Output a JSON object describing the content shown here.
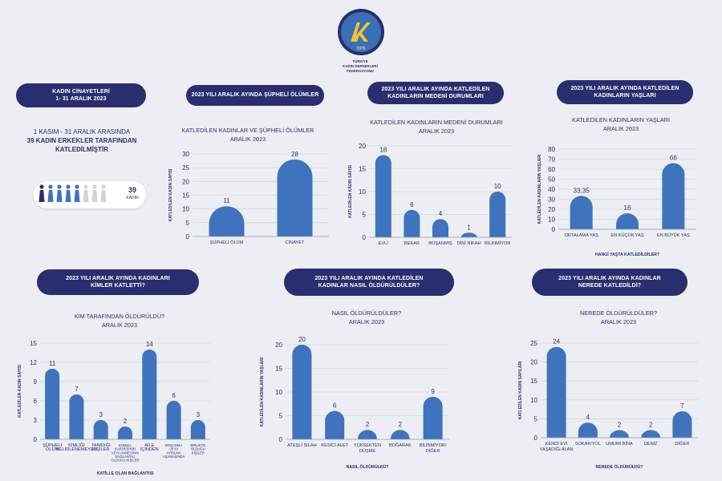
{
  "logo": {
    "text": "TÜRKİYE\nKADIN DERNEKLERİ\nFEDERASYONU",
    "emblem_year": "1976"
  },
  "summary": {
    "title": "KADIN CİNAYETLERİ\n1- 31 ARALIK 2023",
    "line1": "1 KASIM - 31 ARALIK ARASINDA",
    "line2": "39 KADIN ERKEKLER TARAFINDAN",
    "line3": "KATLEDİLMİŞTİR",
    "badge_number": "39",
    "badge_label": "KADIN",
    "colors": {
      "dark": "#2a2d6e",
      "blue": "#3f73bd",
      "grey": "#cfd3dc"
    }
  },
  "panels": {
    "suspicious": {
      "header": "2023 YILI ARALIK AYINDA ŞÜPHELİ ÖLÜMLER",
      "subtitle": "KATLEDİLEN KADINLAR VE ŞÜPHELİ ÖLÜMLER\nARALIK 2023"
    },
    "marital": {
      "header": "2023 YILI ARALIK AYINDA KATLEDİLEN\nKADINLARIN MEDENİ DURUMLARI",
      "subtitle": "KATLEDİLEN KADINLARIN MEDENİ DURUMLARI\nARALIK 2023"
    },
    "ages": {
      "header": "2023 YILI ARALIK AYINDA KATLEDİLEN\nKADINLARIN YAŞLARI",
      "subtitle": "KATLEDİLEN KADINLARIN YAŞLARI\nARALIK 2023"
    },
    "who": {
      "header": "2023 YILI ARALIK AYINDA KADINLARI\nKİMLER KATLETTİ?",
      "subtitle": "KİM TARAFINDAN ÖLDÜRÜLDÜ?\nARALIK 2023"
    },
    "how": {
      "header": "2023 YILI ARALIK AYINDA KATLEDİLEN\nKADINLAR NASIL ÖLDÜRÜLDÜLER?",
      "subtitle": "NASIL ÖLDÜRÜLDÜLER?\nARALIK 2023"
    },
    "where": {
      "header": "2023 YILI ARALIK AYINDA KADINLAR\nNEREDE KATLEDİLDİ?",
      "subtitle": "NEREDE ÖLDÜRÜLDÜLER?\nARALIK 2023"
    }
  },
  "chart_data": [
    {
      "id": "suspicious",
      "type": "bar",
      "categories": [
        "ŞÜPHELİ ÖLÜM",
        "CİNAYET"
      ],
      "values": [
        11,
        28
      ],
      "ylabel": "KATLEDİLEN KADIN SAYISI",
      "xlabel": "",
      "ylim": [
        0,
        30
      ],
      "yticks": [
        0,
        5,
        10,
        15,
        20,
        25,
        30
      ],
      "value_labels": [
        "11",
        "28"
      ],
      "color": "#3f73bd"
    },
    {
      "id": "marital",
      "type": "bar",
      "categories": [
        "EVLİ",
        "BEKAR",
        "BOŞANMIŞ",
        "DİNİ NİKAH",
        "BİLİNMİYOR"
      ],
      "values": [
        18,
        6,
        4,
        1,
        10
      ],
      "ylabel": "KATLEDİLEN KADIN SAYISI",
      "xlabel": "",
      "ylim": [
        0,
        20
      ],
      "yticks": [
        0,
        5,
        10,
        15,
        20
      ],
      "value_labels": [
        "18",
        "6",
        "4",
        "1",
        "10"
      ],
      "color": "#3f73bd"
    },
    {
      "id": "ages",
      "type": "bar",
      "categories": [
        "ORTALAMA YAŞ",
        "EN KÜÇÜK YAŞ",
        "EN BÜYÜK YAŞ"
      ],
      "values": [
        33.35,
        16,
        66
      ],
      "ylabel": "KATLEDİLEN KADINLARIN YAŞLARI",
      "xlabel": "HANGİ YAŞTA KATLEDİLDİLER?",
      "ylim": [
        0,
        80
      ],
      "yticks": [
        0,
        10,
        20,
        30,
        40,
        50,
        60,
        70,
        80
      ],
      "value_labels": [
        "33,35",
        "16",
        "66"
      ],
      "color": "#3f73bd"
    },
    {
      "id": "who",
      "type": "bar",
      "categories": [
        "ŞÜPHELİ\nÖLÜM",
        "KİMLİĞİ\nBELİRLENEMEYEN",
        "TANIDIĞI\nKİŞİLER",
        "KOMŞU,\nKARDEŞİNİN\nVEYA ANNESİNİN\nBAĞLANTILI\nOLDUĞU KİŞİLER",
        "AİLE\nİÇİNDEN",
        "BOŞANMA\nVEYA\nAYRILMA\nAŞAMASINDA",
        "BİRLİKTE\nOLDUĞU\nKİŞİLER"
      ],
      "values": [
        11,
        7,
        3,
        2,
        14,
        6,
        3
      ],
      "ylabel": "KATLEDİLEN KADIN SAYISI",
      "xlabel": "KATİLLE OLAN BAĞLANTISI",
      "ylim": [
        0,
        15
      ],
      "yticks": [
        0,
        3,
        6,
        9,
        12,
        15
      ],
      "value_labels": [
        "11",
        "7",
        "3",
        "2",
        "14",
        "6",
        "3"
      ],
      "color": "#3f73bd"
    },
    {
      "id": "how",
      "type": "bar",
      "categories": [
        "ATEŞLİ SİLAH",
        "KESİCİ ALET",
        "YÜKSEKTEN\nDÜŞME",
        "BOĞARAK",
        "BİLİNMİYOR/\nDİĞER"
      ],
      "values": [
        20,
        6,
        2,
        2,
        9
      ],
      "ylabel": "KATLEDİLEN KADINLARIN YAŞLARI",
      "xlabel": "NASIL ÖLDÜRÜLDÜ?",
      "ylim": [
        0,
        20
      ],
      "yticks": [
        0,
        5,
        10,
        15,
        20
      ],
      "value_labels": [
        "20",
        "6",
        "2",
        "2",
        "9"
      ],
      "color": "#3f73bd"
    },
    {
      "id": "where",
      "type": "bar",
      "categories": [
        "KENDİ EVİ\nYAŞADIĞI ALAN",
        "SOKAK/YOL",
        "UMUMİ BİNA",
        "DENİZ",
        "DİĞER"
      ],
      "values": [
        24,
        4,
        2,
        2,
        7
      ],
      "ylabel": "KATLEDİLEN KADIN SAYILARI",
      "xlabel": "NEREDE ÖLDÜRÜLDÜ?",
      "ylim": [
        0,
        25
      ],
      "yticks": [
        0,
        5,
        10,
        15,
        20,
        25
      ],
      "value_labels": [
        "24",
        "4",
        "2",
        "2",
        "7"
      ],
      "color": "#3f73bd"
    }
  ]
}
